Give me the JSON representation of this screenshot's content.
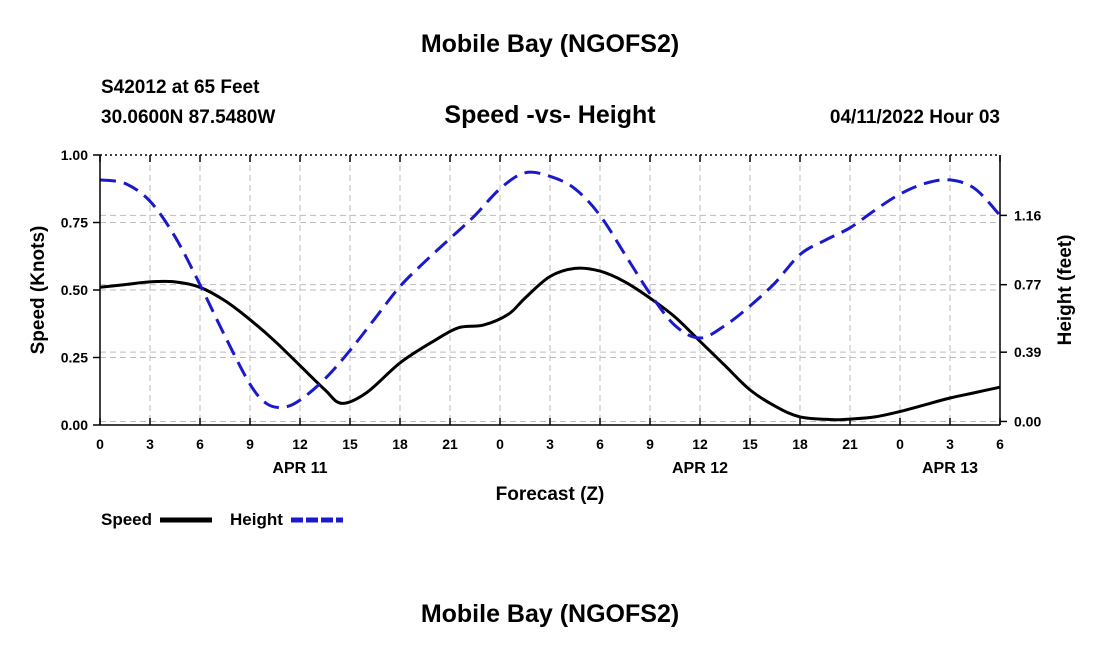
{
  "header": {
    "main_title": "Mobile Bay (NGOFS2)",
    "station": "S42012 at 65 Feet",
    "coords": "30.0600N  87.5480W",
    "date": "04/11/2022 Hour 03"
  },
  "footer": {
    "title": "Mobile Bay (NGOFS2)"
  },
  "legend": {
    "speed_label": "Speed",
    "height_label": "Height"
  },
  "colors": {
    "speed": "#000000",
    "height": "#1a1acc",
    "grid": "#bdbdbd"
  },
  "chart_data": {
    "type": "line",
    "title": "Speed -vs- Height",
    "xlabel": "Forecast (Z)",
    "ylabel": "Speed (Knots)",
    "y2label": "Height (feet)",
    "x_range": [
      0,
      54
    ],
    "x_ticks": [
      0,
      3,
      6,
      9,
      12,
      15,
      18,
      21,
      24,
      27,
      30,
      33,
      36,
      39,
      42,
      45,
      48,
      51,
      54
    ],
    "x_tick_labels": [
      "0",
      "3",
      "6",
      "9",
      "12",
      "15",
      "18",
      "21",
      "0",
      "3",
      "6",
      "9",
      "12",
      "15",
      "18",
      "21",
      "0",
      "3",
      "6"
    ],
    "date_labels": [
      {
        "x": 12,
        "label": "APR 11"
      },
      {
        "x": 36,
        "label": "APR 12"
      },
      {
        "x": 51,
        "label": "APR 13"
      }
    ],
    "ylim": [
      0,
      1
    ],
    "y_ticks": [
      0,
      0.25,
      0.5,
      0.75,
      1.0
    ],
    "y_tick_labels": [
      "0.00",
      "0.25",
      "0.50",
      "0.75",
      "1.00"
    ],
    "y2lim": [
      -0.02,
      1.5
    ],
    "y2_ticks": [
      0.0,
      0.39,
      0.77,
      1.16
    ],
    "y2_tick_labels": [
      "0.00",
      "0.39",
      "0.77",
      "1.16"
    ],
    "series": [
      {
        "name": "Speed",
        "axis": "left",
        "style": "solid",
        "x": [
          0,
          1.5,
          3,
          4.5,
          6,
          7.5,
          9,
          10.5,
          12,
          13.5,
          14.5,
          16,
          18,
          20,
          21.5,
          23,
          24.5,
          25.5,
          27,
          28.5,
          30,
          31.5,
          33,
          34.5,
          36,
          37.5,
          39,
          40.5,
          42,
          44,
          45,
          46.5,
          48,
          49.5,
          51,
          52.5,
          54
        ],
        "y": [
          0.51,
          0.52,
          0.53,
          0.53,
          0.51,
          0.46,
          0.39,
          0.31,
          0.22,
          0.13,
          0.08,
          0.12,
          0.23,
          0.31,
          0.36,
          0.37,
          0.41,
          0.47,
          0.55,
          0.58,
          0.57,
          0.53,
          0.47,
          0.4,
          0.31,
          0.22,
          0.13,
          0.07,
          0.03,
          0.02,
          0.022,
          0.03,
          0.05,
          0.075,
          0.1,
          0.12,
          0.14
        ]
      },
      {
        "name": "Height",
        "axis": "right",
        "style": "dashed",
        "x": [
          0,
          1.5,
          3,
          4.5,
          6,
          7.5,
          9,
          10,
          11,
          12,
          13.5,
          15,
          16.5,
          18,
          19.5,
          21,
          22.5,
          24,
          25.5,
          27,
          28.5,
          30,
          31.5,
          33,
          34.5,
          36,
          37.5,
          39,
          40.5,
          42,
          43.5,
          45,
          46.5,
          48,
          49.5,
          51,
          52.5,
          54
        ],
        "y": [
          1.36,
          1.34,
          1.24,
          1.04,
          0.77,
          0.48,
          0.21,
          0.1,
          0.08,
          0.12,
          0.24,
          0.4,
          0.58,
          0.76,
          0.9,
          1.03,
          1.16,
          1.31,
          1.4,
          1.38,
          1.31,
          1.16,
          0.94,
          0.72,
          0.54,
          0.47,
          0.54,
          0.65,
          0.78,
          0.94,
          1.02,
          1.09,
          1.19,
          1.28,
          1.34,
          1.36,
          1.31,
          1.16
        ]
      }
    ]
  }
}
